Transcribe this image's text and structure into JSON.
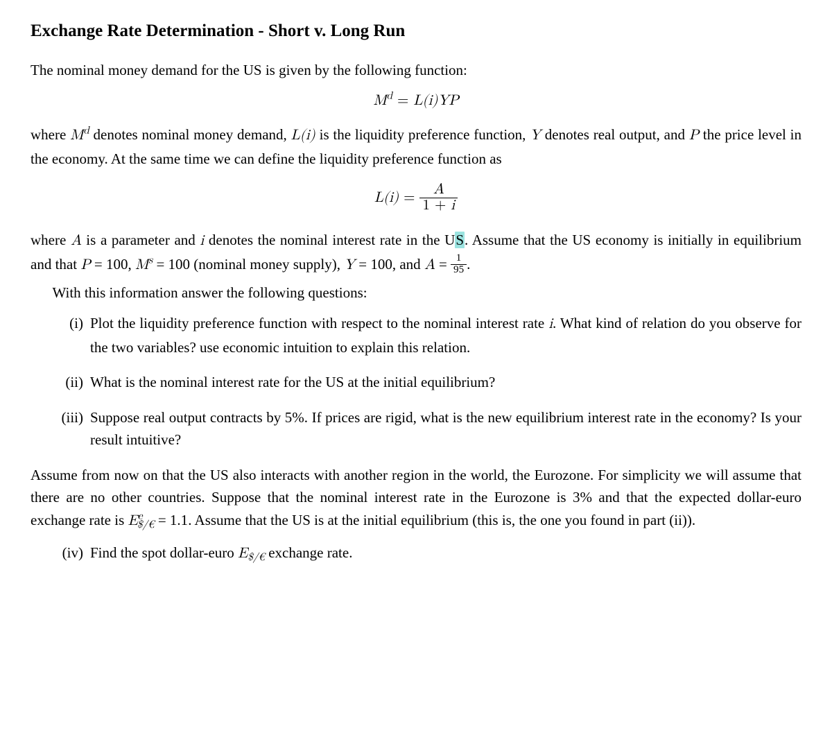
{
  "colors": {
    "text": "#000000",
    "background": "#ffffff",
    "highlight_bg": "#9be3e0"
  },
  "typography": {
    "body_family": "Palatino Linotype",
    "body_size_pt": 16,
    "title_size_pt": 19,
    "title_weight": "bold",
    "line_height": 1.55
  },
  "title": "Exchange Rate Determination - Short v. Long Run",
  "para1": "The nominal money demand for the US is given by the following function:",
  "eq1": {
    "lhs_base": "M",
    "lhs_sup": "d",
    "eq": " = ",
    "rhs": "L(i)YP"
  },
  "para2_a": "where ",
  "para2_Md_base": "M",
  "para2_Md_sup": "d",
  "para2_b": " denotes nominal money demand, ",
  "para2_Li": "L(i)",
  "para2_c": " is the liquidity preference function, ",
  "para2_Y": "Y",
  "para2_d": " denotes real output, and ",
  "para2_P": "P",
  "para2_e": " the price level in the economy. At the same time we can define the liquidity preference function as",
  "eq2": {
    "lhs": "L(i)",
    "eq": " = ",
    "num": "A",
    "den_a": "1 + ",
    "den_i": "i"
  },
  "para3_a": "where ",
  "para3_A": "A",
  "para3_b": " is a parameter and ",
  "para3_i": "i",
  "para3_c": " denotes the nominal interest rate in the U",
  "para3_c_hl": "S",
  "para3_c2": ". Assume that the US econ­omy is initially in equilibrium and that ",
  "para3_P": "P",
  "para3_eq100a": " = 100, ",
  "para3_Ms_base": "M",
  "para3_Ms_sup": "s",
  "para3_eq100b": " = 100 (nominal money supply), ",
  "para3_Y": "Y",
  "para3_eq100c": " = 100, and ",
  "para3_Aeq": "A",
  "para3_eqsign": " = ",
  "para3_frac_num": "1",
  "para3_frac_den": "95",
  "para3_period": ".",
  "para4": "With this information answer the following questions:",
  "items": {
    "i_marker": "(i)",
    "i_a": "Plot the liquidity preference function with respect to the nominal interest rate ",
    "i_var": "i",
    "i_b": ". What kind of relation do you observe for the two variables? use economic intuition to explain this relation.",
    "ii_marker": "(ii)",
    "ii": "What is the nominal interest rate for the US at the initial equilibrium?",
    "iii_marker": "(iii)",
    "iii": "Suppose real output contracts by 5%. If prices are rigid, what is the new equilibrium interest rate in the economy? Is your result intuitive?",
    "iv_marker": "(iv)",
    "iv_a": "Find the spot dollar-euro ",
    "iv_E": "E",
    "iv_sub": "$/€",
    "iv_b": " exchange rate."
  },
  "para5_a": "Assume from now on that the US also interacts with another region in the world, the Eurozone. For simplicity we will assume that there are no other countries. Suppose that the nominal interest rate in the Eurozone is 3% and that the expected dollar-euro exchange rate is ",
  "para5_E": "E",
  "para5_sup": "e",
  "para5_sub": "$/€",
  "para5_val": " = 1.1",
  "para5_b": ". Assume that the US is at the initial equilibrium (this is, the one you found in part (ii))."
}
